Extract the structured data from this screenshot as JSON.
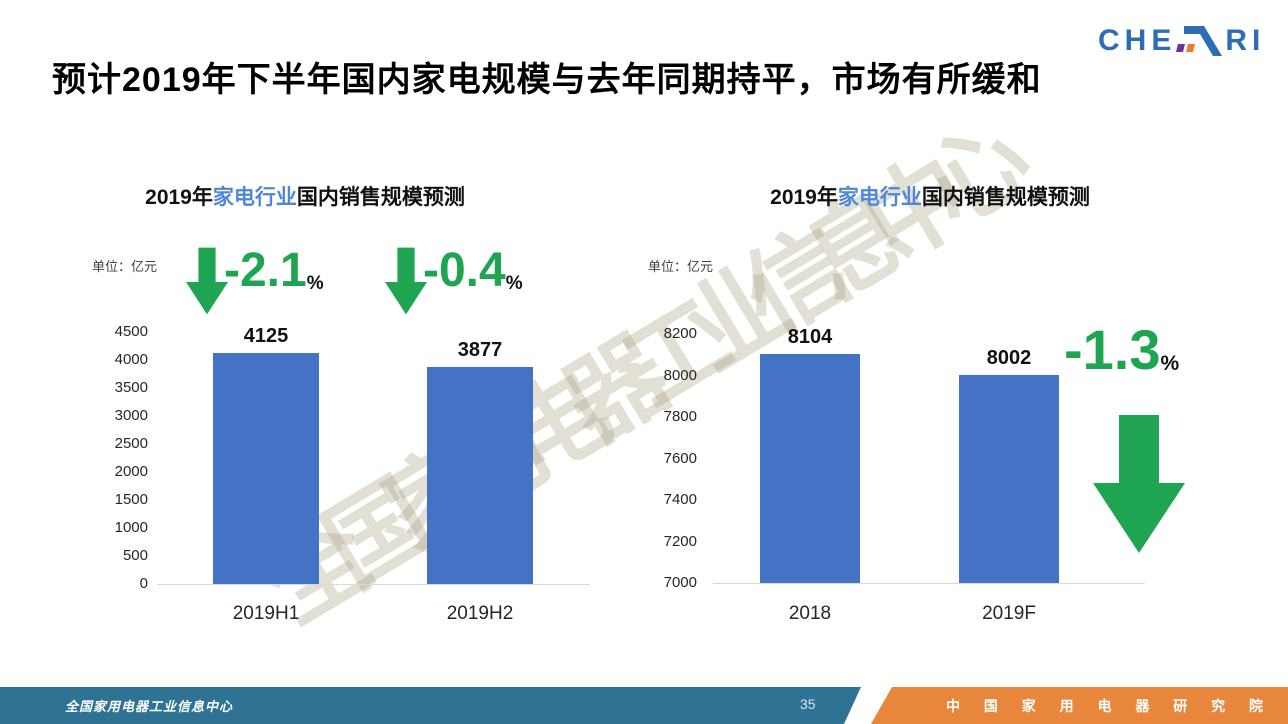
{
  "header": {
    "title": "预计2019年下半年国内家电规模与去年同期持平，市场有所缓和",
    "logo": {
      "left": "CHE",
      "right": "RI",
      "colors": {
        "blue": "#2E6DB4",
        "purple": "#7030A0",
        "orange": "#E97C30"
      }
    }
  },
  "watermark": {
    "text": "全国家用电器工业信息中心"
  },
  "chart_data": [
    {
      "type": "bar",
      "title": "2019年家电行业国内销售规模预测",
      "title_prefix": "2019年",
      "title_highlight": "家电行业",
      "title_suffix": "国内销售规模预测",
      "unit": "单位：亿元",
      "categories": [
        "2019H1",
        "2019H2"
      ],
      "values": [
        4125,
        3877
      ],
      "yticks": [
        4500,
        4000,
        3500,
        3000,
        2500,
        2000,
        1500,
        1000,
        500,
        0
      ],
      "ylim": [
        0,
        4500
      ],
      "grid": false,
      "legend": false,
      "bar_color": "#4472C4",
      "deltas": [
        {
          "value": "-2.1",
          "suffix": "%"
        },
        {
          "value": "-0.4",
          "suffix": "%"
        }
      ]
    },
    {
      "type": "bar",
      "title": "2019年家电行业国内销售规模预测",
      "title_prefix": "2019年",
      "title_highlight": "家电行业",
      "title_suffix": "国内销售规模预测",
      "unit": "单位：亿元",
      "categories": [
        "2018",
        "2019F"
      ],
      "values": [
        8104,
        8002
      ],
      "yticks": [
        8200,
        8000,
        7800,
        7600,
        7400,
        7200,
        7000
      ],
      "ylim": [
        7000,
        8200
      ],
      "grid": false,
      "legend": false,
      "bar_color": "#4472C4",
      "deltas": [
        {
          "value": "-1.3",
          "suffix": "%"
        }
      ]
    }
  ],
  "footer": {
    "org_left": "全国家用电器工业信息中心",
    "page_number": "35",
    "org_right": "中 国 家 用 电 器 研 究 院",
    "colors": {
      "teal": "#2E7394",
      "orange": "#E8873C"
    }
  },
  "accent_colors": {
    "green": "#1FA551",
    "highlight_blue": "#4E87D9",
    "bar_blue": "#4472C4"
  }
}
